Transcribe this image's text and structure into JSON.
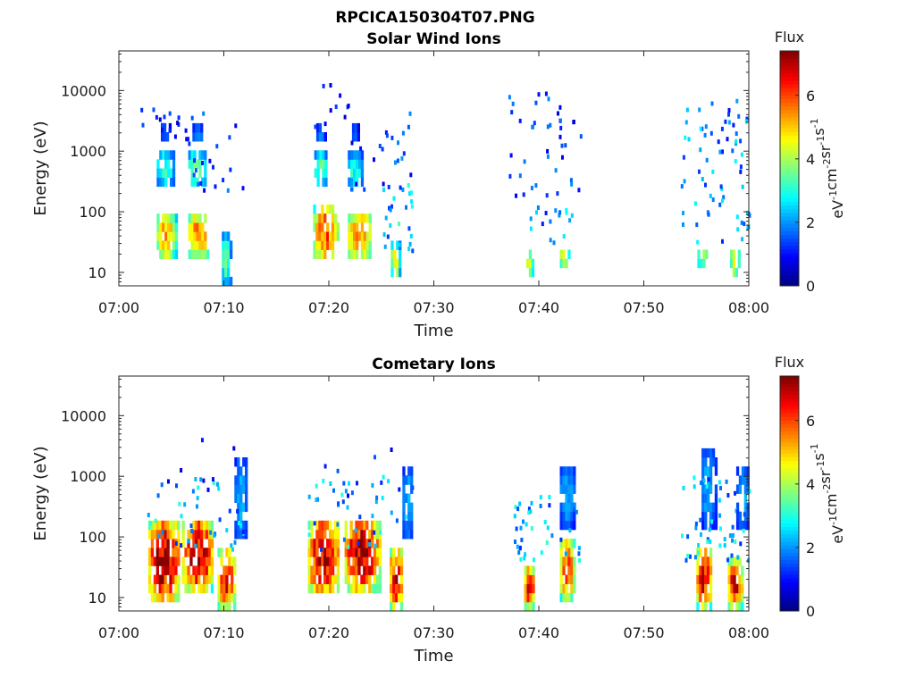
{
  "figure_title": "RPCICA150304T07.PNG",
  "chart_data": [
    {
      "type": "heatmap",
      "title": "Solar Wind Ions",
      "xlabel": "Time",
      "ylabel": "Energy (eV)",
      "x_ticks": [
        "07:00",
        "07:10",
        "07:20",
        "07:30",
        "07:40",
        "07:50",
        "08:00"
      ],
      "x_range_minutes": [
        0,
        60
      ],
      "y_scale": "log",
      "y_range": [
        6,
        45000
      ],
      "y_ticks": [
        {
          "v": 10,
          "label": "10"
        },
        {
          "v": 100,
          "label": "100"
        },
        {
          "v": 1000,
          "label": "1000"
        },
        {
          "v": 10000,
          "label": "10000"
        }
      ],
      "colorbar": {
        "title": "Flux",
        "unit_base": [
          "eV",
          "cm",
          "sr",
          "s"
        ],
        "unit_exp": [
          "-1",
          "-2",
          "-1",
          "-1"
        ],
        "range": [
          0,
          7.4
        ],
        "ticks": [
          {
            "v": 0,
            "label": "0"
          },
          {
            "v": 2,
            "label": "2"
          },
          {
            "v": 4,
            "label": "4"
          },
          {
            "v": 6,
            "label": "6"
          }
        ],
        "colormap": "jet"
      },
      "grid": false,
      "blobs": [
        {
          "t0": 3.6,
          "t1": 5.4,
          "e0": 18,
          "e1": 100,
          "max": 5.2
        },
        {
          "t0": 3.6,
          "t1": 5.2,
          "e0": 280,
          "e1": 1000,
          "max": 3.2
        },
        {
          "t0": 4.0,
          "t1": 4.8,
          "e0": 1500,
          "e1": 2500,
          "max": 1.8
        },
        {
          "t0": 6.6,
          "t1": 8.6,
          "e0": 18,
          "e1": 100,
          "max": 5.4
        },
        {
          "t0": 6.6,
          "t1": 8.2,
          "e0": 250,
          "e1": 1000,
          "max": 3.6
        },
        {
          "t0": 7.0,
          "t1": 8.0,
          "e0": 1500,
          "e1": 2500,
          "max": 2.0
        },
        {
          "t0": 9.8,
          "t1": 10.6,
          "e0": 7,
          "e1": 40,
          "max": 3.5
        },
        {
          "t0": 18.5,
          "t1": 20.8,
          "e0": 16,
          "e1": 130,
          "max": 5.8
        },
        {
          "t0": 18.6,
          "t1": 19.8,
          "e0": 300,
          "e1": 900,
          "max": 3.5
        },
        {
          "t0": 18.8,
          "t1": 19.6,
          "e0": 1500,
          "e1": 2500,
          "max": 2.0
        },
        {
          "t0": 21.8,
          "t1": 24.0,
          "e0": 16,
          "e1": 110,
          "max": 5.6
        },
        {
          "t0": 21.8,
          "t1": 23.2,
          "e0": 250,
          "e1": 900,
          "max": 3.0
        },
        {
          "t0": 22.2,
          "t1": 22.8,
          "e0": 1500,
          "e1": 2500,
          "max": 1.8
        },
        {
          "t0": 25.9,
          "t1": 26.7,
          "e0": 8,
          "e1": 30,
          "max": 4.6
        },
        {
          "t0": 38.8,
          "t1": 39.4,
          "e0": 8,
          "e1": 25,
          "max": 4.4
        },
        {
          "t0": 42.0,
          "t1": 42.8,
          "e0": 12,
          "e1": 28,
          "max": 4.6
        },
        {
          "t0": 55.1,
          "t1": 56.1,
          "e0": 14,
          "e1": 28,
          "max": 4.4
        },
        {
          "t0": 58.2,
          "t1": 59.2,
          "e0": 8,
          "e1": 28,
          "max": 4.4
        }
      ],
      "scatter": [
        {
          "t0": 2,
          "t1": 7,
          "e0": 1200,
          "e1": 5000,
          "n": 18,
          "max": 1.6
        },
        {
          "t0": 7,
          "t1": 12,
          "e0": 200,
          "e1": 4500,
          "n": 18,
          "max": 2.0
        },
        {
          "t0": 18,
          "t1": 22,
          "e0": 800,
          "e1": 13000,
          "n": 10,
          "max": 1.6
        },
        {
          "t0": 22,
          "t1": 27.8,
          "e0": 200,
          "e1": 6000,
          "n": 24,
          "max": 2.2
        },
        {
          "t0": 25,
          "t1": 28,
          "e0": 20,
          "e1": 300,
          "n": 24,
          "max": 3.4
        },
        {
          "t0": 37,
          "t1": 44,
          "e0": 150,
          "e1": 9000,
          "n": 40,
          "max": 2.0
        },
        {
          "t0": 38.5,
          "t1": 43.5,
          "e0": 30,
          "e1": 300,
          "n": 18,
          "max": 3.0
        },
        {
          "t0": 53.5,
          "t1": 60,
          "e0": 30,
          "e1": 7000,
          "n": 70,
          "max": 2.8
        }
      ]
    },
    {
      "type": "heatmap",
      "title": "Cometary Ions",
      "xlabel": "Time",
      "ylabel": "Energy (eV)",
      "x_ticks": [
        "07:00",
        "07:10",
        "07:20",
        "07:30",
        "07:40",
        "07:50",
        "08:00"
      ],
      "x_range_minutes": [
        0,
        60
      ],
      "y_scale": "log",
      "y_range": [
        6,
        45000
      ],
      "y_ticks": [
        {
          "v": 10,
          "label": "10"
        },
        {
          "v": 100,
          "label": "100"
        },
        {
          "v": 1000,
          "label": "1000"
        },
        {
          "v": 10000,
          "label": "10000"
        }
      ],
      "colorbar": {
        "title": "Flux",
        "unit_base": [
          "eV",
          "cm",
          "sr",
          "s"
        ],
        "unit_exp": [
          "-1",
          "-2",
          "-1",
          "-1"
        ],
        "range": [
          0,
          7.4
        ],
        "ticks": [
          {
            "v": 0,
            "label": "0"
          },
          {
            "v": 2,
            "label": "2"
          },
          {
            "v": 4,
            "label": "4"
          },
          {
            "v": 6,
            "label": "6"
          }
        ],
        "colormap": "jet"
      },
      "grid": false,
      "blobs": [
        {
          "t0": 2.8,
          "t1": 5.8,
          "e0": 8,
          "e1": 200,
          "max": 7.0
        },
        {
          "t0": 6.0,
          "t1": 9.0,
          "e0": 14,
          "e1": 200,
          "max": 7.0
        },
        {
          "t0": 9.4,
          "t1": 11.0,
          "e0": 7,
          "e1": 60,
          "max": 6.6
        },
        {
          "t0": 11.0,
          "t1": 12.2,
          "e0": 100,
          "e1": 2000,
          "max": 2.2
        },
        {
          "t0": 18.0,
          "t1": 21.0,
          "e0": 12,
          "e1": 200,
          "max": 7.0
        },
        {
          "t0": 21.5,
          "t1": 24.8,
          "e0": 14,
          "e1": 200,
          "max": 7.0
        },
        {
          "t0": 25.8,
          "t1": 27.0,
          "e0": 7,
          "e1": 60,
          "max": 6.8
        },
        {
          "t0": 27.0,
          "t1": 28.0,
          "e0": 100,
          "e1": 1500,
          "max": 2.2
        },
        {
          "t0": 38.6,
          "t1": 39.6,
          "e0": 7,
          "e1": 30,
          "max": 6.4
        },
        {
          "t0": 42.0,
          "t1": 43.4,
          "e0": 10,
          "e1": 100,
          "max": 6.0
        },
        {
          "t0": 42.0,
          "t1": 43.4,
          "e0": 150,
          "e1": 1500,
          "max": 2.2
        },
        {
          "t0": 55.0,
          "t1": 56.5,
          "e0": 7,
          "e1": 60,
          "max": 6.6
        },
        {
          "t0": 58.0,
          "t1": 59.4,
          "e0": 7,
          "e1": 40,
          "max": 6.6
        },
        {
          "t0": 55.5,
          "t1": 56.8,
          "e0": 150,
          "e1": 3000,
          "max": 2.2
        },
        {
          "t0": 58.8,
          "t1": 60.0,
          "e0": 150,
          "e1": 1500,
          "max": 2.2
        }
      ],
      "scatter": [
        {
          "t0": 2.5,
          "t1": 12,
          "e0": 60,
          "e1": 900,
          "n": 40,
          "max": 3.2
        },
        {
          "t0": 18,
          "t1": 28,
          "e0": 60,
          "e1": 1000,
          "n": 40,
          "max": 3.2
        },
        {
          "t0": 37.5,
          "t1": 44,
          "e0": 40,
          "e1": 500,
          "n": 40,
          "max": 3.2
        },
        {
          "t0": 53.5,
          "t1": 60,
          "e0": 40,
          "e1": 1200,
          "n": 50,
          "max": 3.2
        },
        {
          "t0": 2,
          "t1": 12,
          "e0": 300,
          "e1": 4500,
          "n": 8,
          "max": 1.6
        },
        {
          "t0": 18,
          "t1": 28,
          "e0": 300,
          "e1": 4000,
          "n": 8,
          "max": 1.6
        }
      ]
    }
  ]
}
